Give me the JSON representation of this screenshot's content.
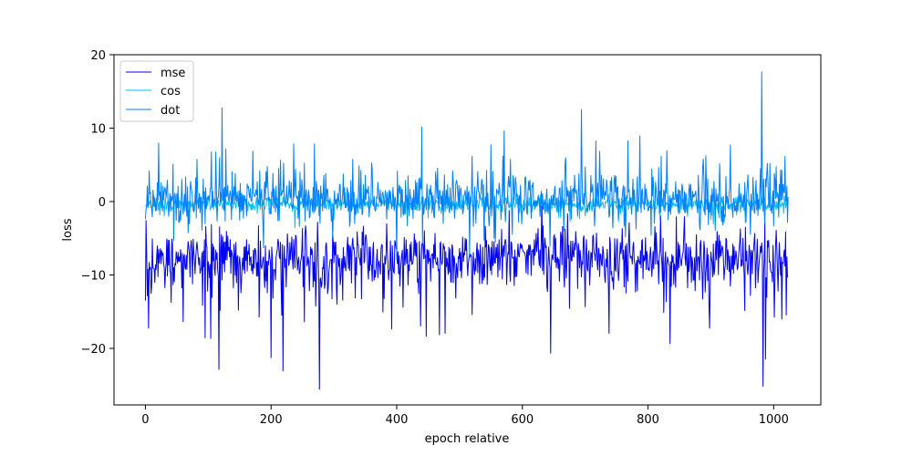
{
  "chart_data": {
    "type": "line",
    "title": "",
    "xlabel": "epoch relative",
    "ylabel": "loss",
    "xlim": [
      -50,
      1075
    ],
    "ylim": [
      -27.7,
      20
    ],
    "x_ticks": [
      0,
      200,
      400,
      600,
      800,
      1000
    ],
    "y_ticks": [
      -20,
      -10,
      0,
      10,
      20
    ],
    "grid": false,
    "legend_position": "upper-left",
    "n_points": 1024,
    "series": [
      {
        "name": "mse",
        "color": "#0000ff",
        "baseline": -7.8,
        "spread": 1.9,
        "spikes": [
          [
            0,
            -13.5
          ],
          [
            5,
            -17.3
          ],
          [
            60,
            -16.4
          ],
          [
            95,
            -18.6
          ],
          [
            104,
            -18.7
          ],
          [
            117,
            -22.9
          ],
          [
            200,
            -21.3
          ],
          [
            219,
            -23.1
          ],
          [
            277,
            -25.6
          ],
          [
            392,
            -17.4
          ],
          [
            438,
            -17.0
          ],
          [
            447,
            -18.4
          ],
          [
            468,
            -18.2
          ],
          [
            477,
            -18.0
          ],
          [
            645,
            -20.7
          ],
          [
            738,
            -18.0
          ],
          [
            835,
            -19.4
          ],
          [
            898,
            -17.3
          ],
          [
            983,
            -25.2
          ],
          [
            987,
            -21.5
          ],
          [
            1001,
            -15.8
          ],
          [
            1020,
            -15.5
          ]
        ]
      },
      {
        "name": "cos",
        "color": "#00bfff",
        "baseline": -0.3,
        "spread": 0.5,
        "spikes": [
          [
            30,
            -2.0
          ],
          [
            300,
            -2.5
          ],
          [
            700,
            -2.0
          ],
          [
            900,
            -2.5
          ]
        ]
      },
      {
        "name": "dot",
        "color": "#0080ff",
        "baseline": 0.3,
        "spread": 1.6,
        "spikes": [
          [
            6,
            4.2
          ],
          [
            21,
            8.0
          ],
          [
            82,
            5.8
          ],
          [
            105,
            6.8
          ],
          [
            112,
            6.8
          ],
          [
            122,
            12.8
          ],
          [
            128,
            7.2
          ],
          [
            171,
            6.9
          ],
          [
            220,
            5.3
          ],
          [
            236,
            7.9
          ],
          [
            269,
            7.9
          ],
          [
            330,
            5.8
          ],
          [
            360,
            5.3
          ],
          [
            440,
            10.2
          ],
          [
            520,
            6.2
          ],
          [
            550,
            7.8
          ],
          [
            581,
            5.8
          ],
          [
            669,
            6.0
          ],
          [
            694,
            12.6
          ],
          [
            717,
            8.3
          ],
          [
            723,
            6.9
          ],
          [
            768,
            8.3
          ],
          [
            787,
            9.0
          ],
          [
            830,
            7.0
          ],
          [
            888,
            5.8
          ],
          [
            914,
            5.2
          ],
          [
            981,
            17.7
          ],
          [
            1004,
            4.8
          ],
          [
            1018,
            6.2
          ]
        ]
      }
    ]
  },
  "axis": {
    "x_tick_labels": [
      "0",
      "200",
      "400",
      "600",
      "800",
      "1000"
    ],
    "y_tick_labels": [
      "−20",
      "−10",
      "0",
      "10",
      "20"
    ]
  }
}
